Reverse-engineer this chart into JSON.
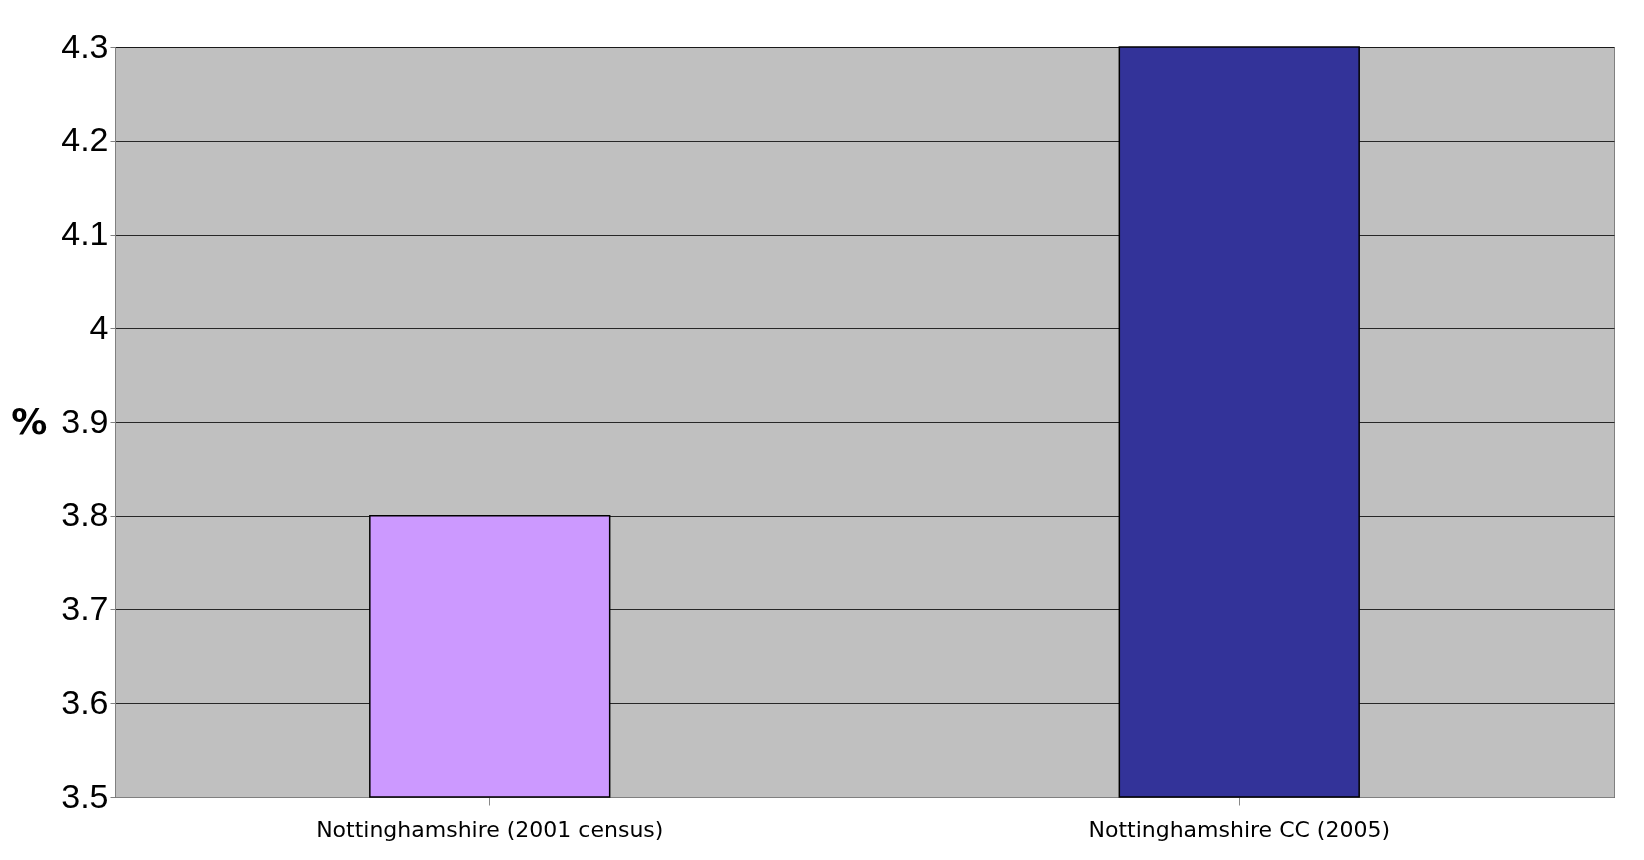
{
  "chart_data": {
    "type": "bar",
    "ylabel": "%",
    "categories": [
      "Nottinghamshire (2001 census)",
      "Nottinghamshire CC (2005)"
    ],
    "values": [
      3.8,
      4.3
    ],
    "colors": [
      "#cc99ff",
      "#333399"
    ],
    "ylim": [
      3.5,
      4.3
    ],
    "yticks": [
      3.5,
      3.6,
      3.7,
      3.8,
      3.9,
      4,
      4.1,
      4.2,
      4.3
    ],
    "grid": "y"
  }
}
